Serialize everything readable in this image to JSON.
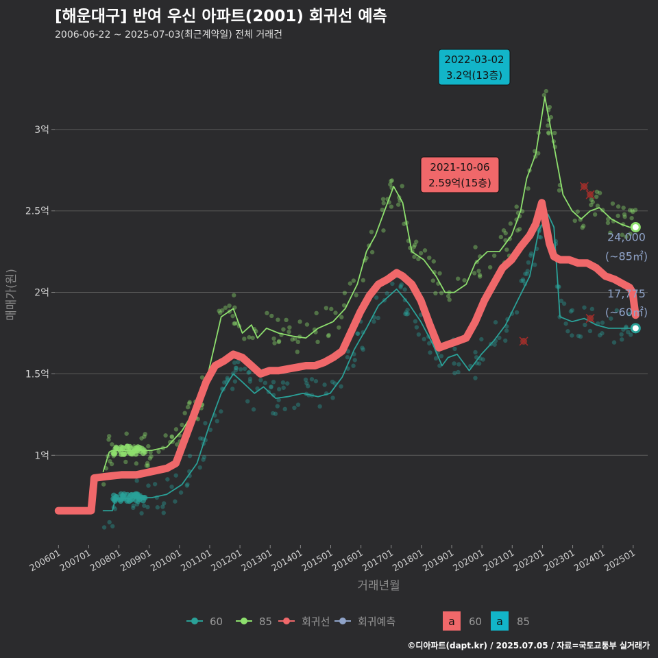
{
  "title": "[해운대구] 반여 우신 아파트(2001) 회귀선 예측",
  "subtitle": "2006-06-22 ~ 2025-07-03(최근계약일) 전체 거래건",
  "footer": "©디아파트(dapt.kr) / 2025.07.05 / 자료=국토교통부 실거래가",
  "colors": {
    "bg": "#2b2b2d",
    "s60": "#2aa198",
    "s85": "#8ee06e",
    "reg": "#f0686a",
    "pred": "#8fa3c8"
  },
  "chart_data": {
    "type": "line",
    "xlabel": "거래년월",
    "ylabel": "매매가(원)",
    "xlim": [
      2006.3,
      2025.9
    ],
    "ylim": [
      0.45,
      3.5
    ],
    "y_ticks": [
      {
        "v": 1.0,
        "label": "1억"
      },
      {
        "v": 1.5,
        "label": "1.5억"
      },
      {
        "v": 2.0,
        "label": "2억"
      },
      {
        "v": 2.5,
        "label": "2.5억"
      },
      {
        "v": 3.0,
        "label": "3억"
      }
    ],
    "x_ticks": [
      {
        "v": 2006.42,
        "label": "200601"
      },
      {
        "v": 2007.42,
        "label": "200701"
      },
      {
        "v": 2008.42,
        "label": "200801"
      },
      {
        "v": 2009.42,
        "label": "200901"
      },
      {
        "v": 2010.42,
        "label": "201001"
      },
      {
        "v": 2011.42,
        "label": "201101"
      },
      {
        "v": 2012.42,
        "label": "201201"
      },
      {
        "v": 2013.42,
        "label": "201301"
      },
      {
        "v": 2014.42,
        "label": "201401"
      },
      {
        "v": 2015.42,
        "label": "201501"
      },
      {
        "v": 2016.42,
        "label": "201601"
      },
      {
        "v": 2017.42,
        "label": "201701"
      },
      {
        "v": 2018.42,
        "label": "201801"
      },
      {
        "v": 2019.42,
        "label": "201901"
      },
      {
        "v": 2020.42,
        "label": "202001"
      },
      {
        "v": 2021.42,
        "label": "202101"
      },
      {
        "v": 2022.42,
        "label": "202201"
      },
      {
        "v": 2023.42,
        "label": "202301"
      },
      {
        "v": 2024.42,
        "label": "202401"
      },
      {
        "v": 2025.42,
        "label": "202501"
      }
    ],
    "series": [
      {
        "name": "60",
        "color": "#2aa198",
        "x": [
          2007.9,
          2008.2,
          2008.3,
          2009.0,
          2009.5,
          2010.0,
          2010.5,
          2011.0,
          2011.4,
          2011.8,
          2012.2,
          2012.5,
          2012.9,
          2013.2,
          2013.6,
          2014.0,
          2014.5,
          2015.0,
          2015.4,
          2015.8,
          2016.2,
          2016.6,
          2017.0,
          2017.3,
          2017.6,
          2018.0,
          2018.4,
          2018.8,
          2019.1,
          2019.3,
          2019.6,
          2020.0,
          2020.4,
          2020.8,
          2021.2,
          2021.6,
          2022.0,
          2022.3,
          2022.6,
          2022.8,
          2023.0,
          2023.4,
          2023.8,
          2024.2,
          2024.6,
          2025.0,
          2025.4
        ],
        "values": [
          0.66,
          0.66,
          0.73,
          0.74,
          0.74,
          0.76,
          0.82,
          0.95,
          1.18,
          1.38,
          1.5,
          1.45,
          1.38,
          1.42,
          1.35,
          1.36,
          1.38,
          1.36,
          1.38,
          1.48,
          1.65,
          1.78,
          1.92,
          1.97,
          2.02,
          1.93,
          1.82,
          1.68,
          1.55,
          1.6,
          1.62,
          1.52,
          1.62,
          1.7,
          1.8,
          1.95,
          2.1,
          2.38,
          2.48,
          2.4,
          1.85,
          1.82,
          1.84,
          1.8,
          1.78,
          1.78,
          1.78
        ]
      },
      {
        "name": "85",
        "color": "#8ee06e",
        "x": [
          2007.9,
          2008.1,
          2008.2,
          2009.0,
          2009.5,
          2010.0,
          2010.5,
          2011.0,
          2011.3,
          2011.8,
          2012.2,
          2012.5,
          2012.8,
          2013.0,
          2013.3,
          2013.7,
          2014.2,
          2014.6,
          2015.0,
          2015.5,
          2015.9,
          2016.3,
          2016.6,
          2016.9,
          2017.2,
          2017.5,
          2017.8,
          2018.1,
          2018.5,
          2018.9,
          2019.2,
          2019.5,
          2019.9,
          2020.2,
          2020.6,
          2021.0,
          2021.4,
          2021.7,
          2021.9,
          2022.2,
          2022.5,
          2022.7,
          2022.9,
          2023.1,
          2023.4,
          2023.7,
          2024.0,
          2024.3,
          2024.7,
          2025.0,
          2025.3,
          2025.5
        ],
        "values": [
          0.9,
          1.02,
          1.03,
          1.03,
          1.03,
          1.05,
          1.15,
          1.3,
          1.45,
          1.85,
          1.9,
          1.75,
          1.8,
          1.72,
          1.78,
          1.75,
          1.73,
          1.72,
          1.78,
          1.82,
          1.9,
          2.05,
          2.25,
          2.35,
          2.5,
          2.65,
          2.55,
          2.25,
          2.2,
          2.1,
          2.0,
          2.0,
          2.05,
          2.18,
          2.25,
          2.25,
          2.35,
          2.5,
          2.7,
          2.85,
          3.2,
          3.0,
          2.8,
          2.6,
          2.5,
          2.45,
          2.5,
          2.52,
          2.45,
          2.42,
          2.4,
          2.4
        ]
      },
      {
        "name": "회귀선",
        "color": "#f0686a",
        "x": [
          2006.42,
          2007.2,
          2007.5,
          2007.6,
          2008.0,
          2008.5,
          2009.0,
          2009.5,
          2010.0,
          2010.3,
          2010.6,
          2011.0,
          2011.3,
          2011.6,
          2011.9,
          2012.2,
          2012.5,
          2012.8,
          2013.1,
          2013.4,
          2013.7,
          2014.0,
          2014.3,
          2014.6,
          2014.9,
          2015.2,
          2015.5,
          2015.8,
          2016.1,
          2016.4,
          2016.7,
          2017.0,
          2017.3,
          2017.6,
          2017.8,
          2018.1,
          2018.4,
          2018.7,
          2019.0,
          2019.3,
          2019.6,
          2019.9,
          2020.2,
          2020.5,
          2020.8,
          2021.1,
          2021.4,
          2021.7,
          2022.0,
          2022.2,
          2022.4,
          2022.5,
          2022.65,
          2022.8,
          2023.0,
          2023.3,
          2023.6,
          2023.9,
          2024.2,
          2024.5,
          2024.8,
          2025.1,
          2025.3,
          2025.4,
          2025.5
        ],
        "values": [
          0.66,
          0.66,
          0.66,
          0.86,
          0.87,
          0.88,
          0.88,
          0.9,
          0.92,
          0.95,
          1.1,
          1.3,
          1.45,
          1.55,
          1.58,
          1.62,
          1.6,
          1.55,
          1.5,
          1.52,
          1.52,
          1.53,
          1.54,
          1.55,
          1.55,
          1.57,
          1.6,
          1.64,
          1.76,
          1.88,
          1.98,
          2.05,
          2.08,
          2.12,
          2.1,
          2.05,
          1.95,
          1.8,
          1.66,
          1.68,
          1.7,
          1.72,
          1.82,
          1.95,
          2.05,
          2.15,
          2.2,
          2.28,
          2.35,
          2.42,
          2.55,
          2.45,
          2.3,
          2.22,
          2.2,
          2.2,
          2.18,
          2.18,
          2.15,
          2.1,
          2.08,
          2.05,
          2.03,
          2.0,
          1.86
        ]
      }
    ],
    "annotations": [
      {
        "date": "2022-03-02",
        "text": "3.2억(13층)",
        "x": 2022.5,
        "y": 3.2,
        "color": "#12b5c9"
      },
      {
        "date": "2021-10-06",
        "text": "2.59억(15층)",
        "x": 2021.8,
        "y": 2.59,
        "color": "#f0686a"
      }
    ],
    "end_labels": [
      {
        "value": "24,000",
        "unit": "(~85㎡)",
        "x": 2025.5,
        "y": 2.4,
        "color": "#8ee06e"
      },
      {
        "value": "17,775",
        "unit": "(~60㎡)",
        "x": 2025.5,
        "y": 1.78,
        "color": "#2aa198"
      }
    ],
    "cancelled": [
      {
        "x": 2021.8,
        "y": 1.7
      },
      {
        "x": 2023.8,
        "y": 2.65
      },
      {
        "x": 2024.0,
        "y": 2.6
      },
      {
        "x": 2024.0,
        "y": 1.84
      }
    ],
    "legend": [
      {
        "label": "60",
        "color": "#2aa198"
      },
      {
        "label": "85",
        "color": "#8ee06e"
      },
      {
        "label": "회귀선",
        "color": "#f0686a"
      },
      {
        "label": "회귀예측",
        "color": "#8fa3c8"
      }
    ],
    "legend2": [
      {
        "label": "60",
        "letter": "a",
        "color": "#f0686a"
      },
      {
        "label": "85",
        "letter": "a",
        "color": "#12b5c9"
      }
    ]
  }
}
